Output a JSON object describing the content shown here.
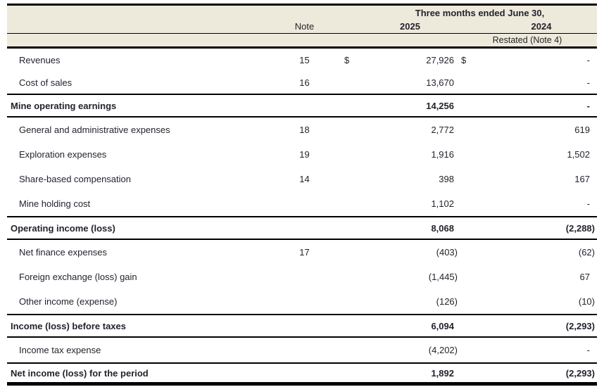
{
  "table": {
    "header": {
      "period_title": "Three months ended June 30,",
      "note_label": "Note",
      "col_2025": "2025",
      "col_2024": "2024",
      "restated_label": "Restated (Note 4)"
    },
    "rows": [
      {
        "label": "Revenues",
        "note": "15",
        "cur_2025": "$",
        "val_2025": "27,926",
        "cur_2024": "$",
        "val_2024": "-",
        "style": "regular"
      },
      {
        "label": "Cost of sales",
        "note": "16",
        "cur_2025": "",
        "val_2025": "13,670",
        "cur_2024": "",
        "val_2024": "-",
        "style": "regular"
      },
      {
        "label": "Mine operating earnings",
        "note": "",
        "cur_2025": "",
        "val_2025": "14,256",
        "cur_2024": "",
        "val_2024": "-",
        "style": "total"
      },
      {
        "label": "General and administrative expenses",
        "note": "18",
        "cur_2025": "",
        "val_2025": "2,772",
        "cur_2024": "",
        "val_2024": "619",
        "style": "regular"
      },
      {
        "label": "Exploration expenses",
        "note": "19",
        "cur_2025": "",
        "val_2025": "1,916",
        "cur_2024": "",
        "val_2024": "1,502",
        "style": "regular"
      },
      {
        "label": "Share-based compensation",
        "note": "14",
        "cur_2025": "",
        "val_2025": "398",
        "cur_2024": "",
        "val_2024": "167",
        "style": "regular"
      },
      {
        "label": "Mine holding cost",
        "note": "",
        "cur_2025": "",
        "val_2025": "1,102",
        "cur_2024": "",
        "val_2024": "-",
        "style": "regular"
      },
      {
        "label": "Operating income (loss)",
        "note": "",
        "cur_2025": "",
        "val_2025": "8,068",
        "cur_2024": "",
        "val_2024": "(2,288)",
        "style": "total"
      },
      {
        "label": "Net finance expenses",
        "note": "17",
        "cur_2025": "",
        "val_2025": "(403)",
        "cur_2024": "",
        "val_2024": "(62)",
        "style": "regular"
      },
      {
        "label": "Foreign exchange (loss) gain",
        "note": "",
        "cur_2025": "",
        "val_2025": "(1,445)",
        "cur_2024": "",
        "val_2024": "67",
        "style": "regular"
      },
      {
        "label": "Other income (expense)",
        "note": "",
        "cur_2025": "",
        "val_2025": "(126)",
        "cur_2024": "",
        "val_2024": "(10)",
        "style": "regular"
      },
      {
        "label": "Income (loss) before taxes",
        "note": "",
        "cur_2025": "",
        "val_2025": "6,094",
        "cur_2024": "",
        "val_2024": "(2,293)",
        "style": "total"
      },
      {
        "label": "Income tax expense",
        "note": "",
        "cur_2025": "",
        "val_2025": "(4,202)",
        "cur_2024": "",
        "val_2024": "-",
        "style": "regular"
      },
      {
        "label": "Net income (loss) for the period",
        "note": "",
        "cur_2025": "",
        "val_2025": "1,892",
        "cur_2024": "",
        "val_2024": "(2,293)",
        "style": "total"
      }
    ],
    "colors": {
      "header_background": "#eeeadb",
      "text": "#23232e",
      "rule_lines": "#000000"
    }
  }
}
